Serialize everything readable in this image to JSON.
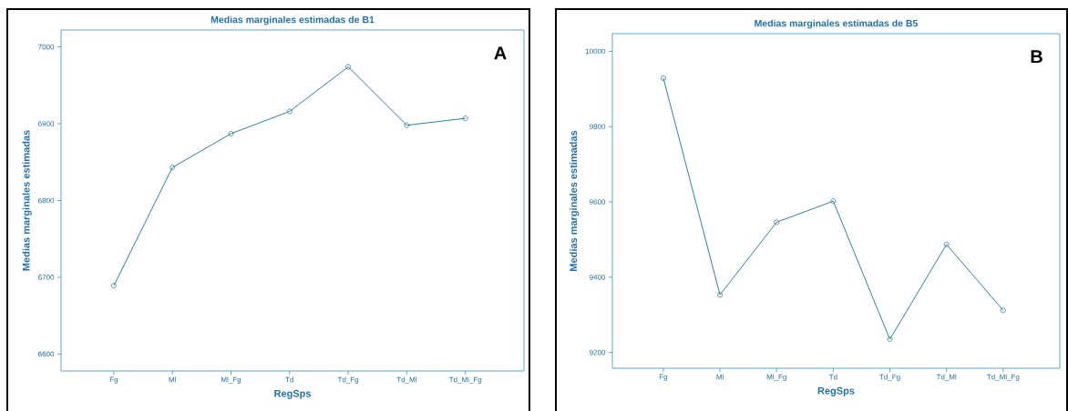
{
  "chart_data": [
    {
      "type": "line",
      "title": "Medias marginales estimadas de B1",
      "xlabel": "RegSps",
      "ylabel": "Medias marginales estimadas",
      "categories": [
        "Fg",
        "Ml",
        "Ml_Fg",
        "Td",
        "Td_Fg",
        "Td_Ml",
        "Td_Ml_Fg"
      ],
      "values": [
        6689,
        6843,
        6887,
        6916,
        6974,
        6898,
        6907
      ],
      "color": "#2e7fa8",
      "ylim": [
        6578,
        7022
      ],
      "yticks": [
        6600,
        6700,
        6800,
        6900,
        7000
      ],
      "marker": "circle",
      "annotations": [
        "A"
      ]
    },
    {
      "type": "line",
      "title": "Medias marginales estimadas de B5",
      "xlabel": "RegSps",
      "ylabel": "Medias marginales estimadas",
      "categories": [
        "Fg",
        "Ml",
        "Ml_Fg",
        "Td",
        "Td_Fg",
        "Td_Ml",
        "Td_Ml_Fg"
      ],
      "values": [
        9929,
        9353,
        9546,
        9602,
        9235,
        9487,
        9312
      ],
      "color": "#2e7fa8",
      "ylim": [
        9158,
        10047
      ],
      "yticks": [
        9200,
        9400,
        9600,
        9800,
        10000
      ],
      "marker": "circle",
      "annotations": [
        "B"
      ]
    }
  ]
}
